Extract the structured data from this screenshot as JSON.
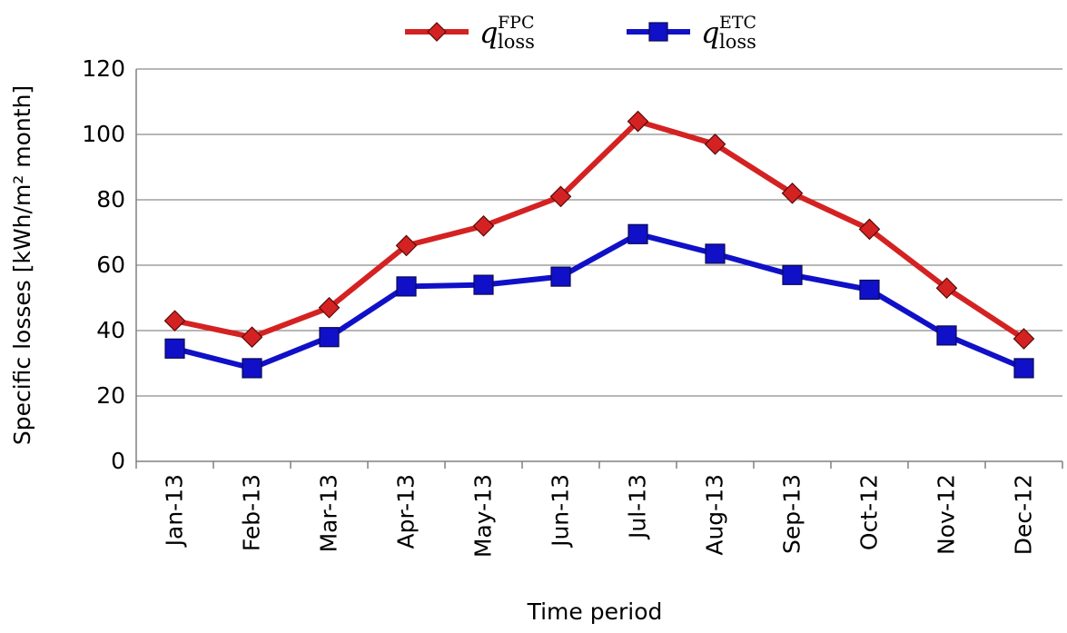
{
  "chart_data": {
    "type": "line",
    "title": "",
    "xlabel": "Time period",
    "ylabel": "Specific losses  [kWh/m² month]",
    "ylim": [
      0,
      120
    ],
    "yticks": [
      0,
      20,
      40,
      60,
      80,
      100,
      120
    ],
    "grid": "horizontal",
    "legend_position": "top",
    "categories": [
      "Jan-13",
      "Feb-13",
      "Mar-13",
      "Apr-13",
      "May-13",
      "Jun-13",
      "Jul-13",
      "Aug-13",
      "Sep-13",
      "Oct-12",
      "Nov-12",
      "Dec-12"
    ],
    "series": [
      {
        "name": "q_loss^FPC",
        "legend_base": "q",
        "legend_sub": "loss",
        "legend_sup": "FPC",
        "color": "#d42222",
        "marker": "diamond",
        "values": [
          43,
          38,
          47,
          66,
          72,
          81,
          104,
          97,
          82,
          71,
          53,
          37.5
        ]
      },
      {
        "name": "q_loss^ETC",
        "legend_base": "q",
        "legend_sub": "loss",
        "legend_sup": "ETC",
        "color": "#1010c8",
        "marker": "square",
        "values": [
          34.5,
          28.5,
          38,
          53.5,
          54,
          56.5,
          69.5,
          63.5,
          57,
          52.5,
          38.5,
          28.5
        ]
      }
    ]
  }
}
